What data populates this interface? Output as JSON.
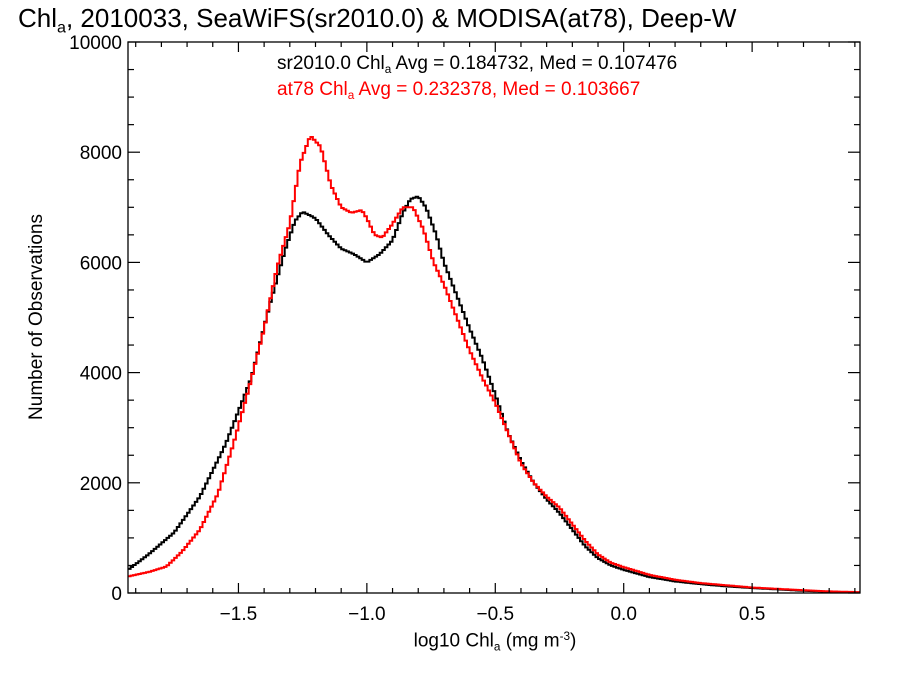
{
  "title": {
    "part1": "Chl",
    "sub": "a",
    "part2": ", 2010033, SeaWiFS(sr2010.0) & MODISA(at78), Deep-W"
  },
  "legend": [
    {
      "prefix": "sr2010.0 Chl",
      "sub": "a",
      "suffix": " Avg = 0.184732, Med = 0.107476",
      "color": "#000000"
    },
    {
      "prefix": "at78 Chl",
      "sub": "a",
      "suffix": " Avg = 0.232378, Med = 0.103667",
      "color": "#ff0000"
    }
  ],
  "axis_labels": {
    "x_prefix": "log10 Chl",
    "x_sub": "a",
    "x_mid": " (mg m",
    "x_sup": "-3",
    "x_end": ")",
    "y": "Number of Observations"
  },
  "chart_data": {
    "type": "line",
    "xlim": [
      -1.93,
      0.92
    ],
    "ylim": [
      0,
      10000
    ],
    "grid": false,
    "x_ticks": [
      -1.5,
      -1.0,
      -0.5,
      0.0,
      0.5
    ],
    "x_tick_labels": [
      "−1.5",
      "−1.0",
      "−0.5",
      "0.0",
      "0.5"
    ],
    "y_ticks": [
      0,
      2000,
      4000,
      6000,
      8000,
      10000
    ],
    "y_tick_labels": [
      "0",
      "2000",
      "4000",
      "6000",
      "8000",
      "10000"
    ],
    "series": [
      {
        "name": "sr2010.0",
        "color": "#000000",
        "points": [
          [
            -1.93,
            420
          ],
          [
            -1.85,
            700
          ],
          [
            -1.75,
            1100
          ],
          [
            -1.65,
            1750
          ],
          [
            -1.55,
            2700
          ],
          [
            -1.45,
            3900
          ],
          [
            -1.38,
            5200
          ],
          [
            -1.32,
            6200
          ],
          [
            -1.28,
            6750
          ],
          [
            -1.25,
            6920
          ],
          [
            -1.2,
            6800
          ],
          [
            -1.15,
            6500
          ],
          [
            -1.1,
            6250
          ],
          [
            -1.05,
            6150
          ],
          [
            -1.0,
            6000
          ],
          [
            -0.95,
            6150
          ],
          [
            -0.9,
            6400
          ],
          [
            -0.86,
            6900
          ],
          [
            -0.83,
            7150
          ],
          [
            -0.8,
            7200
          ],
          [
            -0.77,
            7000
          ],
          [
            -0.73,
            6500
          ],
          [
            -0.7,
            6000
          ],
          [
            -0.65,
            5400
          ],
          [
            -0.6,
            4800
          ],
          [
            -0.55,
            4250
          ],
          [
            -0.5,
            3600
          ],
          [
            -0.45,
            2900
          ],
          [
            -0.4,
            2400
          ],
          [
            -0.35,
            2000
          ],
          [
            -0.3,
            1700
          ],
          [
            -0.25,
            1450
          ],
          [
            -0.2,
            1150
          ],
          [
            -0.15,
            850
          ],
          [
            -0.1,
            630
          ],
          [
            -0.05,
            500
          ],
          [
            0.0,
            420
          ],
          [
            0.1,
            290
          ],
          [
            0.2,
            210
          ],
          [
            0.3,
            160
          ],
          [
            0.4,
            120
          ],
          [
            0.5,
            90
          ],
          [
            0.6,
            65
          ],
          [
            0.7,
            40
          ],
          [
            0.8,
            22
          ],
          [
            0.92,
            10
          ]
        ]
      },
      {
        "name": "at78",
        "color": "#ff0000",
        "points": [
          [
            -1.93,
            300
          ],
          [
            -1.85,
            380
          ],
          [
            -1.78,
            480
          ],
          [
            -1.72,
            750
          ],
          [
            -1.65,
            1150
          ],
          [
            -1.58,
            1800
          ],
          [
            -1.52,
            2700
          ],
          [
            -1.46,
            3700
          ],
          [
            -1.4,
            4800
          ],
          [
            -1.35,
            5900
          ],
          [
            -1.3,
            6700
          ],
          [
            -1.26,
            7800
          ],
          [
            -1.22,
            8300
          ],
          [
            -1.18,
            8100
          ],
          [
            -1.14,
            7400
          ],
          [
            -1.1,
            7000
          ],
          [
            -1.06,
            6900
          ],
          [
            -1.02,
            6950
          ],
          [
            -1.0,
            6800
          ],
          [
            -0.97,
            6500
          ],
          [
            -0.94,
            6450
          ],
          [
            -0.9,
            6700
          ],
          [
            -0.86,
            7000
          ],
          [
            -0.82,
            7000
          ],
          [
            -0.78,
            6600
          ],
          [
            -0.74,
            6000
          ],
          [
            -0.7,
            5600
          ],
          [
            -0.65,
            5000
          ],
          [
            -0.6,
            4400
          ],
          [
            -0.55,
            3900
          ],
          [
            -0.5,
            3450
          ],
          [
            -0.45,
            2900
          ],
          [
            -0.4,
            2350
          ],
          [
            -0.35,
            2000
          ],
          [
            -0.3,
            1750
          ],
          [
            -0.25,
            1550
          ],
          [
            -0.2,
            1250
          ],
          [
            -0.15,
            950
          ],
          [
            -0.1,
            700
          ],
          [
            -0.05,
            550
          ],
          [
            0.0,
            470
          ],
          [
            0.1,
            330
          ],
          [
            0.2,
            240
          ],
          [
            0.3,
            180
          ],
          [
            0.4,
            140
          ],
          [
            0.5,
            100
          ],
          [
            0.6,
            75
          ],
          [
            0.7,
            50
          ],
          [
            0.8,
            30
          ],
          [
            0.92,
            15
          ]
        ]
      }
    ]
  }
}
